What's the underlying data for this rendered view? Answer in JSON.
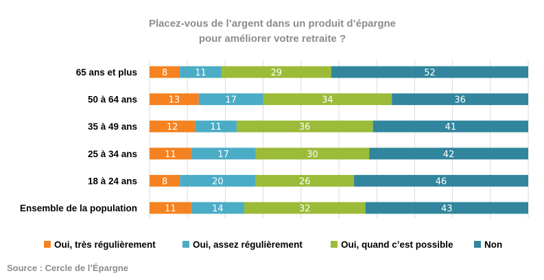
{
  "chart_data": {
    "type": "bar",
    "orientation": "horizontal",
    "stacked": true,
    "title": [
      "Placez-vous de l’argent dans un produit d’épargne",
      "pour améliorer votre retraite  ?"
    ],
    "categories": [
      "65 ans et plus",
      "50 à 64 ans",
      "35 à 49 ans",
      "25 à 34 ans",
      "18 à 24 ans",
      "Ensemble de la population"
    ],
    "series": [
      {
        "name": "Oui, très  régulièrement",
        "color": "#f58220",
        "values": [
          8,
          13,
          12,
          11,
          8,
          11
        ]
      },
      {
        "name": "Oui, assez  régulièrement",
        "color": "#4bacc6",
        "values": [
          11,
          17,
          11,
          17,
          20,
          14
        ]
      },
      {
        "name": "Oui, quand  c’est possible",
        "color": "#9bbb39",
        "values": [
          29,
          34,
          36,
          30,
          26,
          32
        ]
      },
      {
        "name": "Non",
        "color": "#31859c",
        "values": [
          52,
          36,
          41,
          42,
          46,
          43
        ]
      }
    ],
    "xlim": [
      0,
      100
    ],
    "grid": true,
    "legend_position": "bottom"
  },
  "source": "Source : Cercle de l’Épargne"
}
